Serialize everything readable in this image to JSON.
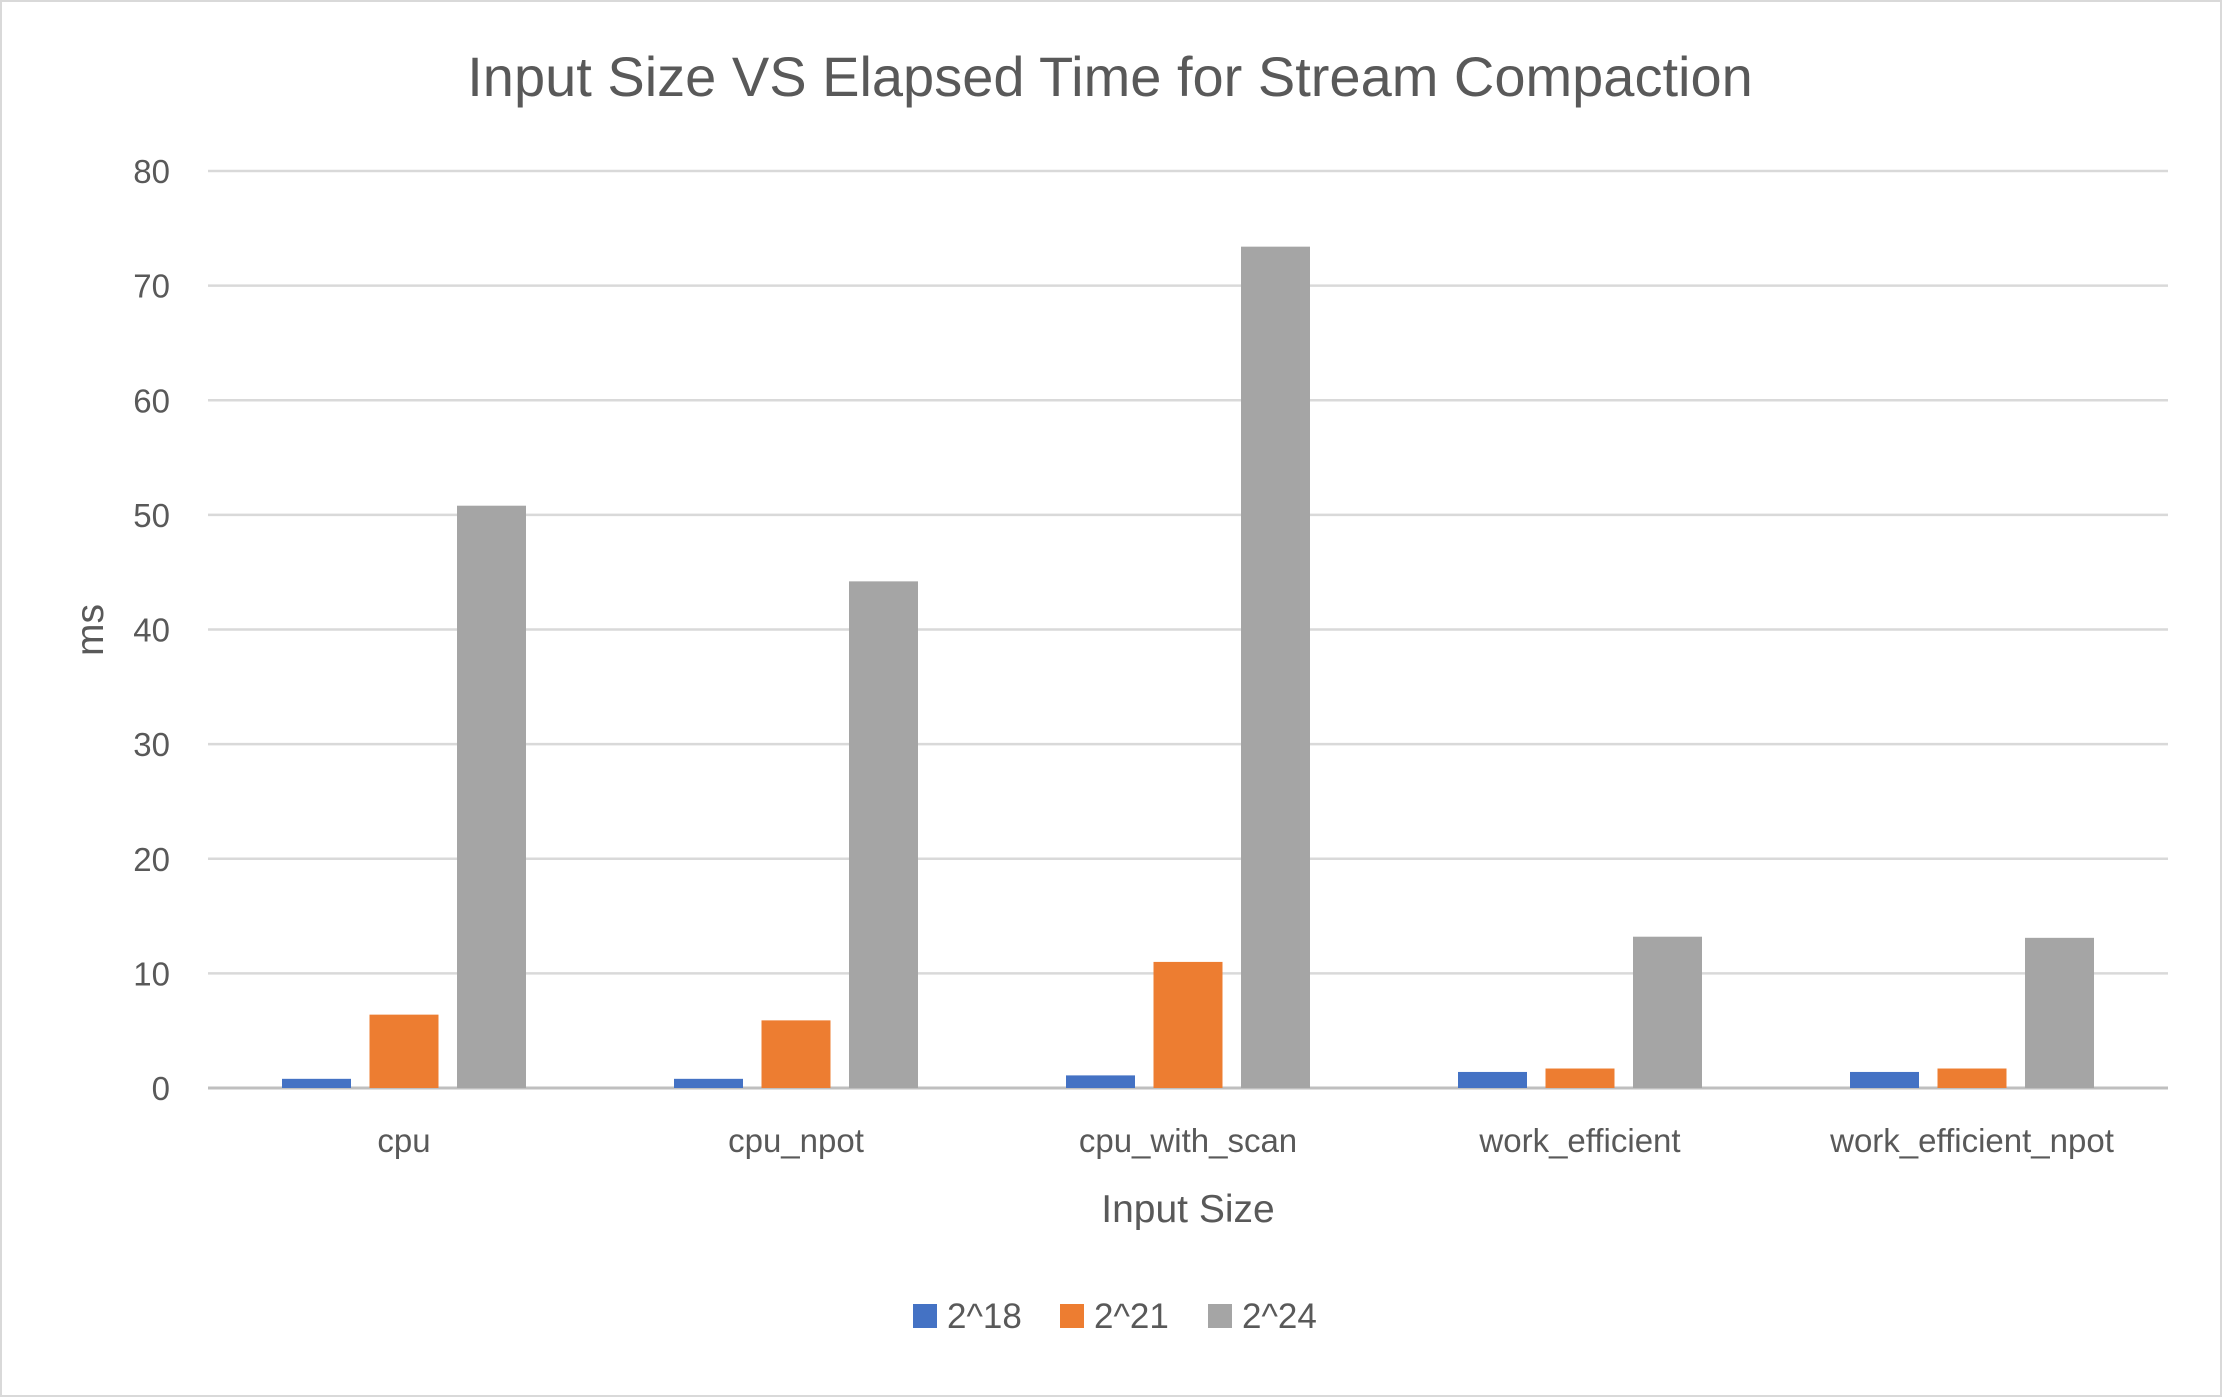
{
  "chart_data": {
    "type": "bar",
    "title": "Input Size VS Elapsed Time for Stream Compaction",
    "xlabel": "Input Size",
    "ylabel": "ms",
    "categories": [
      "cpu",
      "cpu_npot",
      "cpu_with_scan",
      "work_efficient",
      "work_efficient_npot"
    ],
    "series": [
      {
        "name": "2^18",
        "color": "#4472c4",
        "values": [
          0.8,
          0.8,
          1.1,
          1.4,
          1.4
        ]
      },
      {
        "name": "2^21",
        "color": "#ed7d31",
        "values": [
          6.4,
          5.9,
          11.0,
          1.7,
          1.7
        ]
      },
      {
        "name": "2^24",
        "color": "#a5a5a5",
        "values": [
          50.8,
          44.2,
          73.4,
          13.2,
          13.1
        ]
      }
    ],
    "ylim": [
      0,
      80
    ],
    "yticks": [
      0,
      10,
      20,
      30,
      40,
      50,
      60,
      70,
      80
    ],
    "grid": true,
    "legend_position": "bottom"
  }
}
